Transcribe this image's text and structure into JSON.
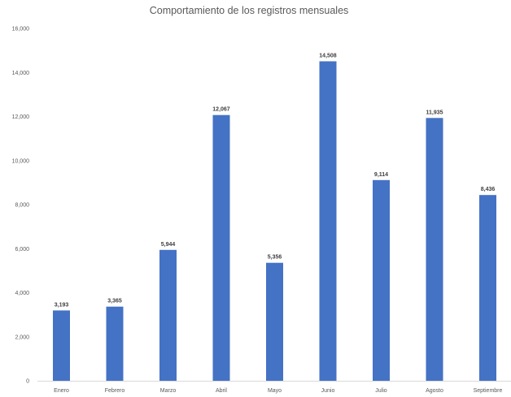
{
  "chart_data": {
    "type": "bar",
    "title": "Comportamiento de los registros mensuales",
    "categories": [
      "Enero",
      "Febrero",
      "Marzo",
      "Abril",
      "Mayo",
      "Junio",
      "Julio",
      "Agosto",
      "Septiembre"
    ],
    "values": [
      3193,
      3365,
      5944,
      12067,
      5356,
      14508,
      9114,
      11935,
      8436
    ],
    "data_labels": [
      "3,193",
      "3,365",
      "5,944",
      "12,067",
      "5,356",
      "14,508",
      "9,114",
      "11,935",
      "8,436"
    ],
    "y_ticks": [
      0,
      2000,
      4000,
      6000,
      8000,
      10000,
      12000,
      14000,
      16000
    ],
    "y_tick_labels": [
      "0",
      "2,000",
      "4,000",
      "6,000",
      "8,000",
      "10,000",
      "12,000",
      "14,000",
      "16,000"
    ],
    "ylim": [
      0,
      16000
    ],
    "bar_color": "#4472C4",
    "gridlines": false,
    "legend": "none"
  }
}
